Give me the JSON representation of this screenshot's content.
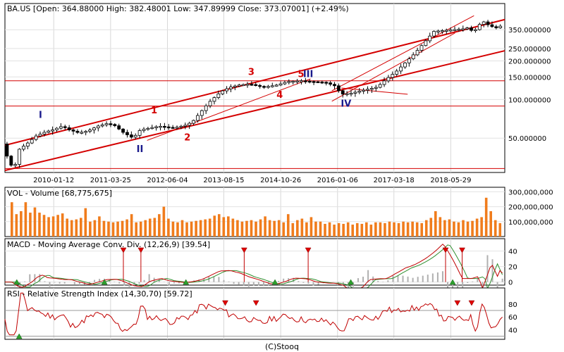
{
  "chart_data": [
    {
      "type": "candlestick",
      "title": "BA.US [Open: 364.88000  High: 382.48001  Low: 347.89999  Close: 373.07001]  (+2.49%)",
      "y_scale": "log",
      "ylim": [
        27,
        560
      ],
      "y_ticks": [
        "350.000000",
        "250.000000",
        "200.000000",
        "150.000000",
        "100.000000",
        "50.000000"
      ],
      "x_ticks": [
        "2010-01-12",
        "2011-03-25",
        "2012-06-04",
        "2013-08-15",
        "2014-10-26",
        "2016-01-06",
        "2017-03-18",
        "2018-05-29"
      ],
      "x_tick_values": [
        2010.03,
        2011.23,
        2012.43,
        2013.62,
        2014.82,
        2016.02,
        2017.21,
        2018.41
      ],
      "xlim": [
        2009.0,
        2019.55
      ],
      "anchors": [
        [
          2009.0,
          45
        ],
        [
          2009.15,
          31
        ],
        [
          2009.25,
          30
        ],
        [
          2009.35,
          41
        ],
        [
          2009.5,
          45
        ],
        [
          2009.7,
          52
        ],
        [
          2009.9,
          56
        ],
        [
          2010.05,
          58
        ],
        [
          2010.25,
          62
        ],
        [
          2010.4,
          58
        ],
        [
          2010.6,
          55
        ],
        [
          2010.8,
          57
        ],
        [
          2011.0,
          62
        ],
        [
          2011.2,
          65
        ],
        [
          2011.35,
          63
        ],
        [
          2011.55,
          55
        ],
        [
          2011.75,
          50
        ],
        [
          2011.9,
          58
        ],
        [
          2012.1,
          60
        ],
        [
          2012.3,
          62
        ],
        [
          2012.6,
          60
        ],
        [
          2012.85,
          63
        ],
        [
          2013.0,
          67
        ],
        [
          2013.15,
          78
        ],
        [
          2013.35,
          95
        ],
        [
          2013.6,
          115
        ],
        [
          2013.8,
          125
        ],
        [
          2014.0,
          130
        ],
        [
          2014.2,
          132
        ],
        [
          2014.5,
          125
        ],
        [
          2014.8,
          130
        ],
        [
          2015.0,
          138
        ],
        [
          2015.3,
          140
        ],
        [
          2015.5,
          138
        ],
        [
          2015.8,
          136
        ],
        [
          2016.0,
          128
        ],
        [
          2016.15,
          110
        ],
        [
          2016.35,
          112
        ],
        [
          2016.6,
          118
        ],
        [
          2016.9,
          125
        ],
        [
          2017.1,
          145
        ],
        [
          2017.3,
          165
        ],
        [
          2017.5,
          195
        ],
        [
          2017.7,
          230
        ],
        [
          2017.9,
          280
        ],
        [
          2018.1,
          340
        ],
        [
          2018.3,
          345
        ],
        [
          2018.5,
          350
        ],
        [
          2018.7,
          355
        ],
        [
          2018.85,
          365
        ],
        [
          2018.92,
          330
        ],
        [
          2019.0,
          360
        ],
        [
          2019.12,
          410
        ],
        [
          2019.25,
          380
        ],
        [
          2019.4,
          360
        ],
        [
          2019.5,
          373
        ]
      ],
      "annotations": {
        "waves_red": [
          {
            "text": "1",
            "x": 2012.15,
            "y": 78
          },
          {
            "text": "2",
            "x": 2012.85,
            "y": 48
          },
          {
            "text": "3",
            "x": 2014.2,
            "y": 155
          },
          {
            "text": "4",
            "x": 2014.8,
            "y": 103
          },
          {
            "text": "5",
            "x": 2015.25,
            "y": 150
          }
        ],
        "waves_blue": [
          {
            "text": "I",
            "x": 2009.75,
            "y": 72
          },
          {
            "text": "II",
            "x": 2011.85,
            "y": 39
          },
          {
            "text": "III",
            "x": 2015.4,
            "y": 150
          },
          {
            "text": "IV",
            "x": 2016.2,
            "y": 88
          }
        ],
        "horizontal_levels": [
          140,
          89,
          29
        ],
        "trend_lines": [
          [
            [
              2009.0,
              44
            ],
            [
              2019.55,
              420
            ]
          ],
          [
            [
              2009.0,
              28
            ],
            [
              2019.55,
              240
            ]
          ],
          [
            [
              2012.0,
              48
            ],
            [
              2015.45,
              145
            ]
          ],
          [
            [
              2015.9,
              117
            ],
            [
              2018.9,
              450
            ]
          ],
          [
            [
              2015.9,
              97
            ],
            [
              2018.5,
              330
            ]
          ],
          [
            [
              2016.1,
              123
            ],
            [
              2017.5,
              110
            ]
          ]
        ]
      }
    },
    {
      "type": "bar",
      "title": "VOL - Volume [68,775,675]",
      "y_ticks": [
        "300,000,000",
        "200,000,000",
        "100,000,000"
      ],
      "ylim": [
        0,
        330000000
      ],
      "values": [
        230,
        150,
        170,
        230,
        160,
        195,
        160,
        145,
        130,
        135,
        145,
        155,
        120,
        110,
        115,
        125,
        190,
        100,
        110,
        135,
        105,
        100,
        95,
        100,
        105,
        115,
        150,
        95,
        100,
        110,
        120,
        125,
        150,
        200,
        120,
        100,
        95,
        110,
        95,
        100,
        105,
        110,
        115,
        120,
        140,
        150,
        130,
        135,
        120,
        110,
        100,
        105,
        110,
        100,
        115,
        135,
        110,
        105,
        110,
        95,
        150,
        90,
        110,
        120,
        95,
        130,
        100,
        100,
        85,
        95,
        80,
        90,
        85,
        95,
        80,
        90,
        85,
        95,
        80,
        95,
        95,
        90,
        100,
        95,
        90,
        100,
        95,
        100,
        95,
        90,
        110,
        125,
        170,
        130,
        110,
        115,
        100,
        95,
        110,
        100,
        105,
        120,
        130,
        260,
        170,
        110,
        90
      ],
      "value_unit": "millions"
    },
    {
      "type": "line",
      "title": "MACD - Moving Average Conv. Div. (12,26,9) [39.54]",
      "y_ticks": [
        "40",
        "20",
        "0"
      ],
      "ylim": [
        -4,
        56
      ],
      "markers_down": [
        2011.5,
        2011.87,
        2014.05,
        2015.4,
        2018.3,
        2018.65
      ],
      "markers_up": [
        2009.25,
        2011.1,
        2012.82,
        2014.7,
        2016.3,
        2018.45
      ]
    },
    {
      "type": "line",
      "title": "RSI - Relative Strength Index (14,30,70) [59.72]",
      "y_ticks": [
        "80",
        "60",
        "40"
      ],
      "ylim": [
        25,
        105
      ],
      "reference_lines": [
        70,
        30
      ],
      "markers_down": [
        2013.65,
        2014.3,
        2018.55,
        2018.85
      ],
      "markers_up": [
        2009.3
      ]
    }
  ],
  "footer": "(C)Stooq"
}
